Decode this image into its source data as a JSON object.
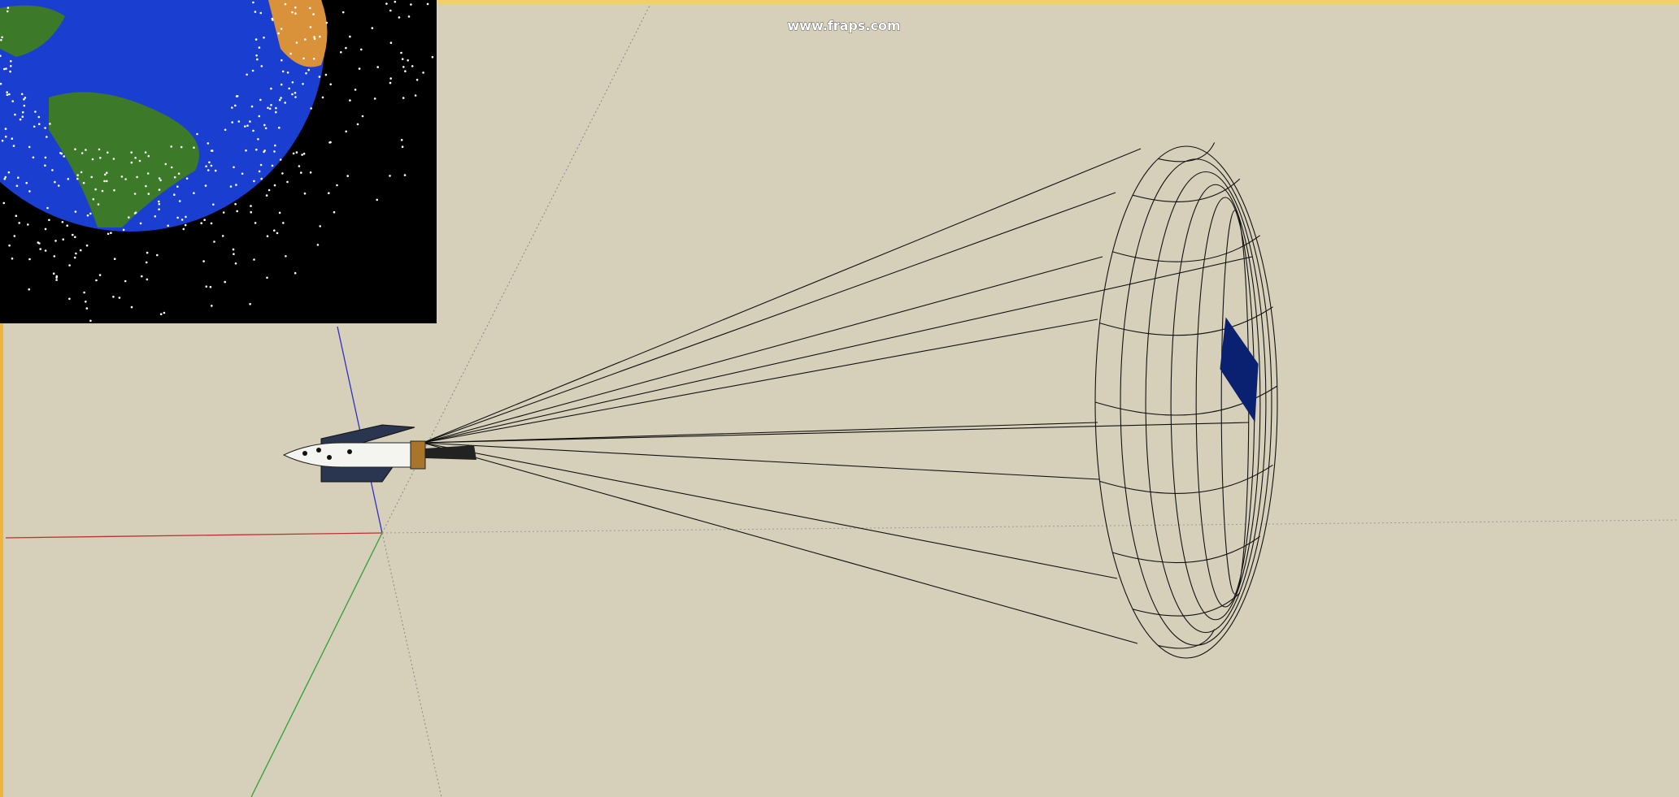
{
  "watermark": "www.fraps.com"
}
